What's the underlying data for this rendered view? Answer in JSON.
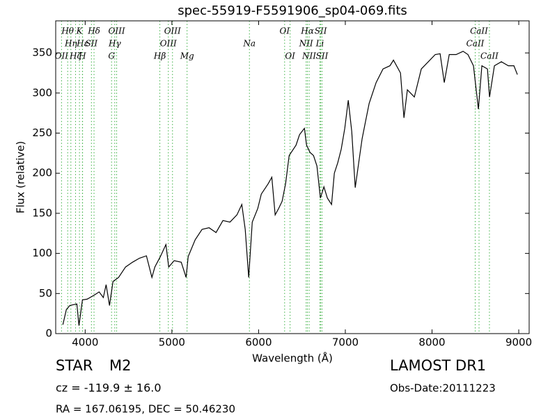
{
  "chart_data": {
    "type": "line",
    "title": "spec-55919-F5591906_sp04-069.fits",
    "xlabel": "Wavelength (Å)",
    "ylabel": "Flux (relative)",
    "xlim": [
      3660,
      9120
    ],
    "ylim": [
      0,
      390
    ],
    "xticks": [
      4000,
      5000,
      6000,
      7000,
      8000,
      9000
    ],
    "yticks": [
      0,
      50,
      100,
      150,
      200,
      250,
      300,
      350
    ],
    "x": [
      3743,
      3783,
      3823,
      3904,
      3928,
      3968,
      4024,
      4104,
      4161,
      4209,
      4241,
      4281,
      4321,
      4385,
      4465,
      4546,
      4626,
      4706,
      4770,
      4803,
      4867,
      4931,
      4963,
      5027,
      5108,
      5164,
      5188,
      5268,
      5348,
      5429,
      5509,
      5589,
      5670,
      5750,
      5806,
      5846,
      5886,
      5927,
      5990,
      6031,
      6111,
      6152,
      6191,
      6231,
      6271,
      6311,
      6352,
      6432,
      6472,
      6528,
      6553,
      6592,
      6633,
      6673,
      6713,
      6753,
      6793,
      6841,
      6873,
      6913,
      6953,
      6994,
      7034,
      7074,
      7114,
      7154,
      7194,
      7234,
      7275,
      7355,
      7435,
      7515,
      7555,
      7636,
      7676,
      7716,
      7796,
      7876,
      7957,
      8037,
      8093,
      8141,
      8198,
      8278,
      8358,
      8414,
      8478,
      8535,
      8575,
      8639,
      8663,
      8719,
      8800,
      8880,
      8944,
      8984
    ],
    "series": [
      {
        "color": "#000000",
        "values": [
          11,
          30,
          35,
          37,
          10,
          42,
          43,
          48,
          52,
          45,
          61,
          35,
          65,
          70,
          83,
          89,
          94,
          97,
          70,
          83,
          96,
          111,
          83,
          91,
          89,
          70,
          96,
          117,
          130,
          132,
          126,
          141,
          139,
          148,
          161,
          130,
          70,
          139,
          156,
          174,
          187,
          195,
          148,
          156,
          165,
          187,
          222,
          235,
          248,
          256,
          235,
          226,
          222,
          209,
          169,
          183,
          169,
          161,
          200,
          213,
          230,
          256,
          291,
          252,
          182,
          213,
          243,
          265,
          287,
          313,
          330,
          334,
          341,
          325,
          269,
          304,
          295,
          330,
          339,
          348,
          349,
          313,
          348,
          348,
          352,
          348,
          334,
          280,
          334,
          330,
          295,
          334,
          339,
          334,
          334,
          323
        ]
      }
    ],
    "line_color": "#3cb043",
    "lines": [
      {
        "x": 3727,
        "label": "OII",
        "row": 3
      },
      {
        "x": 3798,
        "label": "Hθ",
        "row": 1
      },
      {
        "x": 3835,
        "label": "Hη",
        "row": 2
      },
      {
        "x": 3889,
        "label": "Hζ",
        "row": 3
      },
      {
        "x": 3934,
        "label": "K",
        "row": 1
      },
      {
        "x": 3970,
        "label": "Hε",
        "row": 2
      },
      {
        "x": 3968,
        "label": "H",
        "row": 3
      },
      {
        "x": 4072,
        "label": "SII",
        "row": 2
      },
      {
        "x": 4102,
        "label": "Hδ",
        "row": 1
      },
      {
        "x": 4304,
        "label": "G",
        "row": 3
      },
      {
        "x": 4341,
        "label": "Hγ",
        "row": 2
      },
      {
        "x": 4363,
        "label": "OIII",
        "row": 1
      },
      {
        "x": 4861,
        "label": "Hβ",
        "row": 3
      },
      {
        "x": 4959,
        "label": "OIII",
        "row": 2
      },
      {
        "x": 5007,
        "label": "OIII",
        "row": 1
      },
      {
        "x": 5175,
        "label": "Mg",
        "row": 3
      },
      {
        "x": 5894,
        "label": "Na",
        "row": 2
      },
      {
        "x": 6300,
        "label": "OI",
        "row": 1
      },
      {
        "x": 6363,
        "label": "OI",
        "row": 3
      },
      {
        "x": 6548,
        "label": "NII",
        "row": 2
      },
      {
        "x": 6563,
        "label": "Hα",
        "row": 1
      },
      {
        "x": 6583,
        "label": "NII",
        "row": 3
      },
      {
        "x": 6707,
        "label": "Li",
        "row": 2
      },
      {
        "x": 6716,
        "label": "SII",
        "row": 1
      },
      {
        "x": 6731,
        "label": "SII",
        "row": 3
      },
      {
        "x": 8498,
        "label": "CaII",
        "row": 2
      },
      {
        "x": 8542,
        "label": "CaII",
        "row": 1
      },
      {
        "x": 8662,
        "label": "CaII",
        "row": 3
      }
    ],
    "object_class": "STAR",
    "subclass": "M2",
    "redshift": "cz = -119.9 ± 16.0",
    "coords": "RA = 167.06195, DEC = 50.46230",
    "survey": "LAMOST DR1",
    "obs_date": "Obs-Date:20111223"
  }
}
